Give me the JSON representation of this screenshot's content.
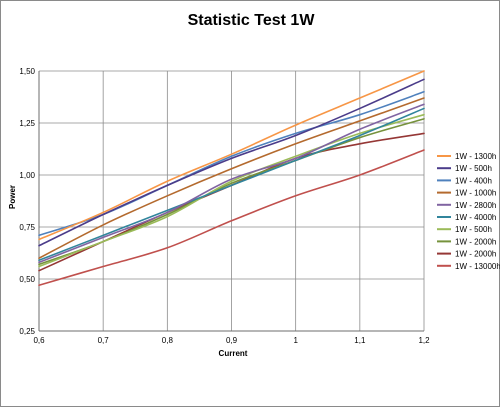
{
  "chart_data": {
    "type": "line",
    "title": "Statistic Test 1W",
    "xlabel": "Current",
    "ylabel": "Power",
    "xlim": [
      0.6,
      1.2
    ],
    "ylim": [
      0.25,
      1.5
    ],
    "x_ticks": [
      0.6,
      0.7,
      0.8,
      0.9,
      1.0,
      1.1,
      1.2
    ],
    "x_tick_labels": [
      "0,6",
      "0,7",
      "0,8",
      "0,9",
      "1",
      "1,1",
      "1,2"
    ],
    "y_ticks": [
      0.25,
      0.5,
      0.75,
      1.0,
      1.25,
      1.5
    ],
    "y_tick_labels": [
      "0,25",
      "0,50",
      "0,75",
      "1,00",
      "1,25",
      "1,50"
    ],
    "grid": true,
    "legend_position": "right",
    "x": [
      0.6,
      0.7,
      0.8,
      0.9,
      1.0,
      1.1,
      1.2
    ],
    "series": [
      {
        "name": "1W - 1300h",
        "color": "#F79646",
        "values": [
          0.69,
          0.82,
          0.97,
          1.1,
          1.24,
          1.37,
          1.5
        ]
      },
      {
        "name": "1W - 500h",
        "color": "#4B3C8A",
        "values": [
          0.66,
          0.81,
          0.95,
          1.08,
          1.19,
          1.32,
          1.46
        ]
      },
      {
        "name": "1W - 400h",
        "color": "#4F81BD",
        "values": [
          0.71,
          0.81,
          0.95,
          1.09,
          1.2,
          1.29,
          1.4
        ]
      },
      {
        "name": "1W - 1000h",
        "color": "#B46A2E",
        "values": [
          0.6,
          0.76,
          0.9,
          1.03,
          1.15,
          1.26,
          1.37
        ]
      },
      {
        "name": "1W - 2800h",
        "color": "#8064A2",
        "values": [
          0.58,
          0.7,
          0.82,
          0.98,
          1.08,
          1.22,
          1.34
        ]
      },
      {
        "name": "1W - 4000h",
        "color": "#31859C",
        "values": [
          0.59,
          0.71,
          0.83,
          0.95,
          1.07,
          1.19,
          1.32
        ]
      },
      {
        "name": "1W - 500h",
        "color": "#9BBB59",
        "values": [
          0.56,
          0.68,
          0.8,
          0.97,
          1.09,
          1.2,
          1.29
        ]
      },
      {
        "name": "1W - 2000h",
        "color": "#76923C",
        "values": [
          0.57,
          0.68,
          0.81,
          0.96,
          1.07,
          1.18,
          1.27
        ]
      },
      {
        "name": "1W - 2000h",
        "color": "#953735",
        "values": [
          0.54,
          0.68,
          0.82,
          0.95,
          1.08,
          1.15,
          1.2
        ]
      },
      {
        "name": "1W - 13000h",
        "color": "#C0504D",
        "values": [
          0.47,
          0.56,
          0.65,
          0.78,
          0.9,
          1.0,
          1.12
        ]
      }
    ]
  }
}
